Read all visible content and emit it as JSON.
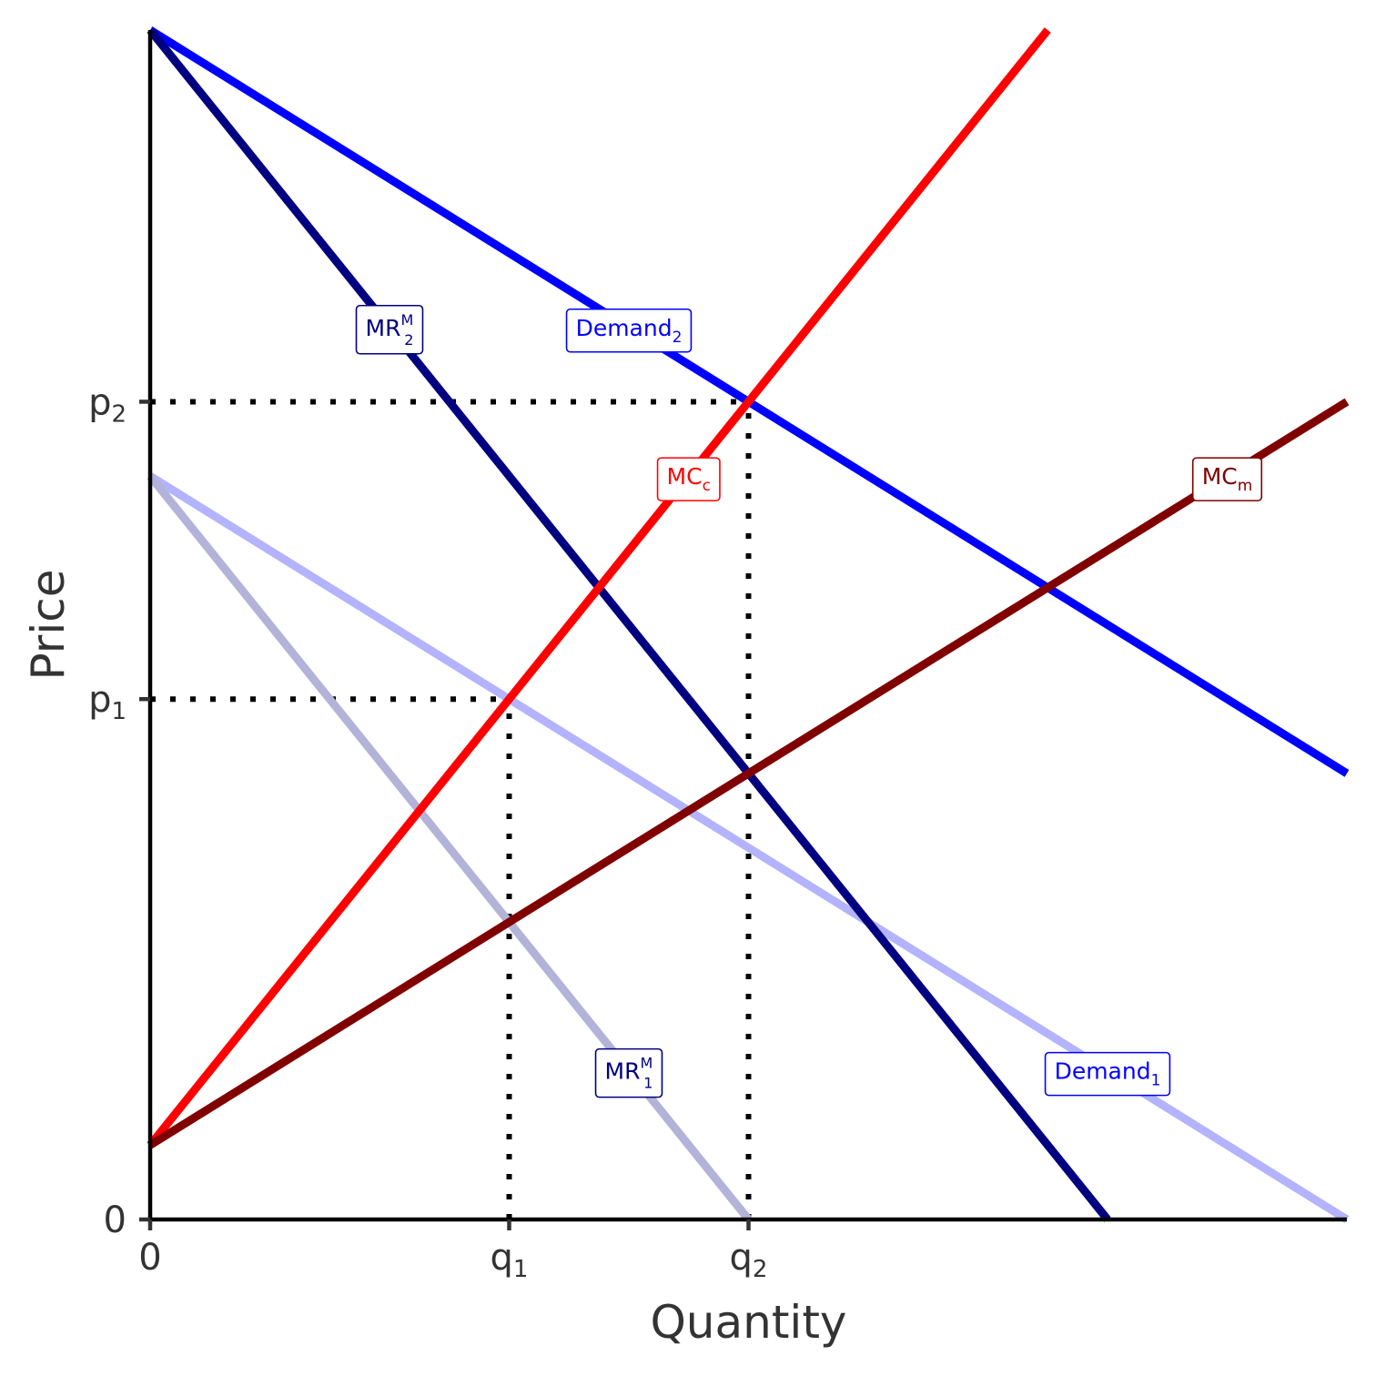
{
  "chart_data": {
    "type": "line",
    "xlabel": "Quantity",
    "ylabel": "Price",
    "xlim": [
      0,
      10
    ],
    "ylim": [
      0,
      10
    ],
    "x_ticks": [
      {
        "value": 0,
        "label": "0"
      },
      {
        "value": 3,
        "label": "q",
        "sub": "1"
      },
      {
        "value": 5,
        "label": "q",
        "sub": "2"
      }
    ],
    "y_ticks": [
      {
        "value": 0,
        "label": "0"
      },
      {
        "value": 4.375,
        "label": "p",
        "sub": "1"
      },
      {
        "value": 6.875,
        "label": "p",
        "sub": "2"
      }
    ],
    "series": [
      {
        "name": "Demand1",
        "color": "#b3b3ff",
        "x": [
          0,
          10
        ],
        "y": [
          6.25,
          0
        ]
      },
      {
        "name": "MR1M",
        "color": "#b3b3d9",
        "x": [
          0,
          5
        ],
        "y": [
          6.25,
          0
        ]
      },
      {
        "name": "Demand2",
        "color": "#0000ff",
        "x": [
          0,
          10
        ],
        "y": [
          10,
          3.75
        ]
      },
      {
        "name": "MR2M",
        "color": "#000080",
        "x": [
          0,
          8
        ],
        "y": [
          10,
          0
        ]
      },
      {
        "name": "MCc",
        "color": "#ff0000",
        "x": [
          0,
          7.5
        ],
        "y": [
          0.625,
          10
        ]
      },
      {
        "name": "MCm",
        "color": "#800000",
        "x": [
          0,
          10
        ],
        "y": [
          0.625,
          6.875
        ]
      }
    ],
    "guides": [
      {
        "x": [
          0,
          5
        ],
        "y": [
          6.875,
          6.875
        ]
      },
      {
        "x": [
          5,
          5
        ],
        "y": [
          0,
          6.875
        ]
      },
      {
        "x": [
          0,
          3
        ],
        "y": [
          4.375,
          4.375
        ]
      },
      {
        "x": [
          3,
          3
        ],
        "y": [
          0,
          4.375
        ]
      }
    ],
    "labels": [
      {
        "series": "MR2M",
        "text": "MR",
        "sup": "M",
        "sub": "2",
        "color": "#000080",
        "x": 2.0,
        "y": 7.5
      },
      {
        "series": "Demand2",
        "text": "Demand",
        "sub": "2",
        "color": "#0000ff",
        "x": 4.0,
        "y": 7.5
      },
      {
        "series": "MCc",
        "text": "MC",
        "sub": "c",
        "color": "#ff0000",
        "x": 4.5,
        "y": 6.25
      },
      {
        "series": "MCm",
        "text": "MC",
        "sub": "m",
        "color": "#800000",
        "x": 9.0,
        "y": 6.25
      },
      {
        "series": "MR1M",
        "text": "MR",
        "sup": "M",
        "sub": "1",
        "color": "#000080",
        "x": 4.0,
        "y": 1.25
      },
      {
        "series": "Demand1",
        "text": "Demand",
        "sub": "1",
        "color": "#0000ff",
        "x": 8.0,
        "y": 1.25
      }
    ],
    "grid": false,
    "legend": "none"
  }
}
